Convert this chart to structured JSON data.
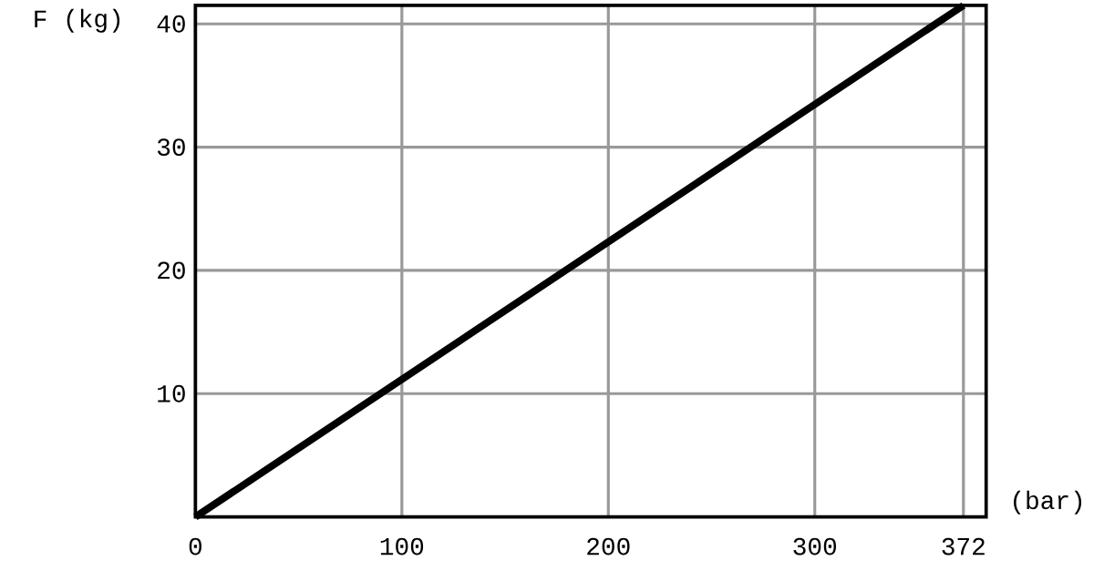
{
  "chart_data": {
    "type": "line",
    "xlabel": "(bar)",
    "ylabel": "F (kg)",
    "x": [
      0,
      372
    ],
    "series": [
      {
        "color": "#000000",
        "values": [
          0,
          41.5
        ]
      }
    ],
    "xlim": [
      0,
      383
    ],
    "ylim": [
      0,
      41.5
    ],
    "xticks": [
      0,
      100,
      200,
      300,
      372
    ],
    "yticks": [
      10,
      20,
      30,
      40
    ],
    "grid": true,
    "marker": "none",
    "line_style": "solid"
  }
}
